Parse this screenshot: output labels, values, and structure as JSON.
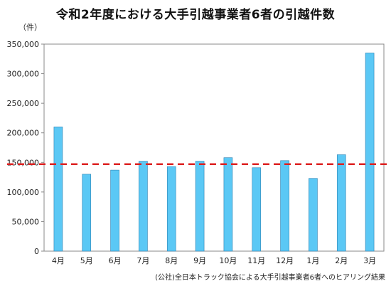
{
  "chart_data": {
    "type": "bar",
    "title": "令和2年度における大手引越事業者6者の引越件数",
    "unit_label": "（件）",
    "source_note": "(公社)全日本トラック協会による大手引越事業者6者へのヒアリング結果",
    "categories": [
      "4月",
      "5月",
      "6月",
      "7月",
      "8月",
      "9月",
      "10月",
      "11月",
      "12月",
      "1月",
      "2月",
      "3月"
    ],
    "values": [
      210000,
      130000,
      137000,
      152000,
      143000,
      152000,
      158000,
      141000,
      153000,
      123000,
      163000,
      335000
    ],
    "ylim": [
      0,
      350000
    ],
    "yticks": [
      0,
      50000,
      100000,
      150000,
      200000,
      250000,
      300000,
      350000
    ],
    "ytick_labels": [
      "0",
      "50,000",
      "100,000",
      "150,000",
      "200,000",
      "250,000",
      "300,000",
      "350,000"
    ],
    "reference_line": {
      "value": 147000,
      "style": "dashed",
      "color": "#dd2222"
    },
    "bar_color": "#5bc8f5",
    "grid": false
  }
}
